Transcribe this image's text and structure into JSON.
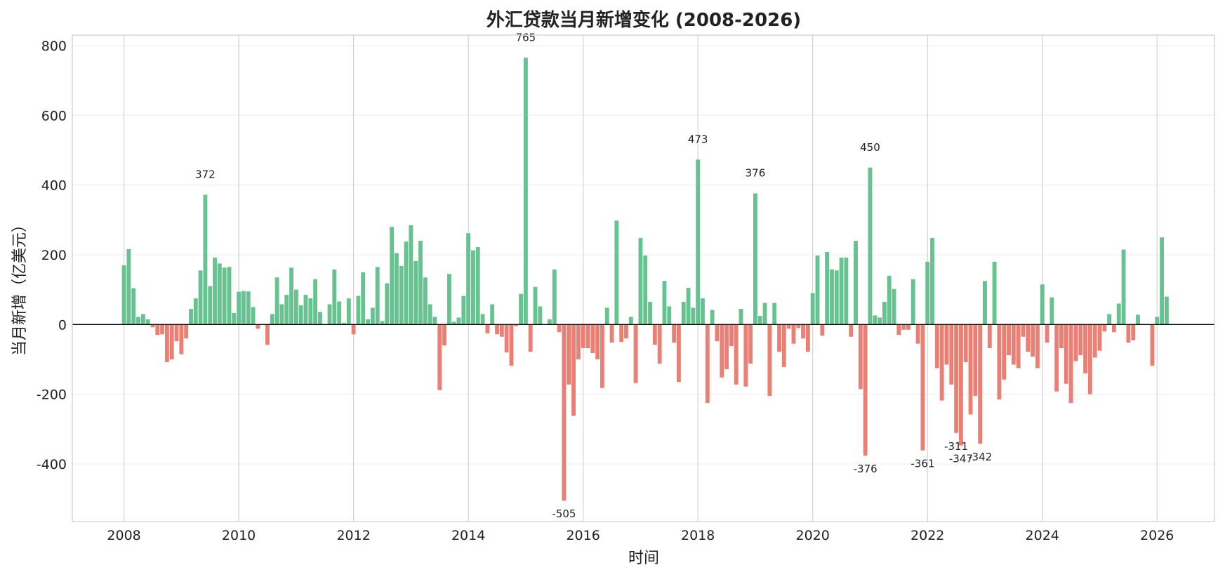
{
  "chart_data": {
    "type": "bar",
    "title": "外汇贷款当月新增变化 (2008-2026)",
    "xlabel": "时间",
    "ylabel": "当月新增（亿美元）",
    "xlim": [
      2007.1,
      2027.0
    ],
    "ylim": [
      -565,
      830
    ],
    "x_ticks": [
      2008,
      2010,
      2012,
      2014,
      2016,
      2018,
      2020,
      2022,
      2024,
      2026
    ],
    "y_ticks": [
      -400,
      -200,
      0,
      200,
      400,
      600,
      800
    ],
    "grid": true,
    "legend": "none",
    "colors": {
      "positive": "#66c28e",
      "negative": "#ec7f74",
      "zero_line": "#000000"
    },
    "x_start": "2008-01",
    "frequency": "monthly",
    "values": [
      170,
      216,
      104,
      22,
      30,
      15,
      -8,
      -30,
      -28,
      -108,
      -100,
      -48,
      -85,
      -40,
      45,
      75,
      155,
      372,
      110,
      192,
      175,
      163,
      165,
      33,
      94,
      96,
      95,
      50,
      -12,
      0,
      -58,
      30,
      135,
      58,
      85,
      163,
      100,
      55,
      85,
      75,
      130,
      36,
      0,
      58,
      158,
      66,
      5,
      75,
      -28,
      82,
      150,
      15,
      48,
      165,
      10,
      118,
      280,
      205,
      168,
      238,
      285,
      182,
      240,
      135,
      58,
      22,
      -188,
      -60,
      145,
      8,
      20,
      82,
      262,
      213,
      222,
      30,
      -25,
      58,
      -28,
      -35,
      -80,
      -118,
      -5,
      88,
      765,
      -78,
      108,
      52,
      0,
      15,
      158,
      -22,
      -505,
      -172,
      -262,
      -100,
      -68,
      -68,
      -82,
      -100,
      -182,
      48,
      -52,
      298,
      -50,
      -40,
      22,
      -168,
      248,
      198,
      65,
      -58,
      -112,
      125,
      52,
      -52,
      -165,
      65,
      105,
      48,
      473,
      75,
      -225,
      42,
      -48,
      -152,
      -128,
      -62,
      -172,
      45,
      -178,
      -112,
      376,
      25,
      62,
      -205,
      62,
      -78,
      -122,
      -12,
      -55,
      -10,
      -40,
      -78,
      90,
      198,
      -32,
      208,
      158,
      155,
      192,
      192,
      -35,
      240,
      -185,
      -376,
      450,
      26,
      20,
      65,
      140,
      102,
      -30,
      -15,
      -15,
      130,
      -55,
      -361,
      180,
      248,
      -125,
      -218,
      -115,
      -172,
      -311,
      -347,
      -108,
      -258,
      -205,
      -342,
      125,
      -68,
      180,
      -215,
      -158,
      -88,
      -115,
      -125,
      -35,
      -78,
      -92,
      -125,
      115,
      -52,
      78,
      -192,
      -68,
      -170,
      -225,
      -105,
      -88,
      -140,
      -200,
      -95,
      -75,
      -20,
      30,
      -22,
      60,
      215,
      -52,
      -45,
      28,
      0,
      0,
      -118,
      22,
      250,
      80
    ],
    "annotations": [
      "765",
      "473",
      "450",
      "376",
      "372",
      "-505",
      "-376",
      "-361",
      "-347",
      "-342",
      "-311"
    ]
  }
}
